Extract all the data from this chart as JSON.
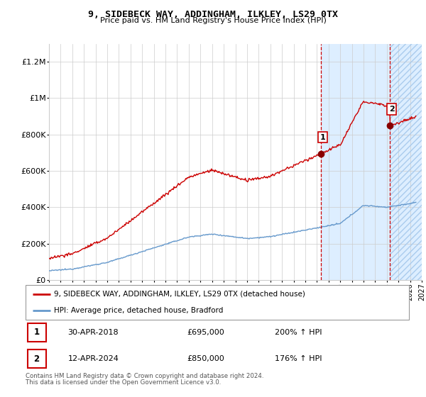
{
  "title": "9, SIDEBECK WAY, ADDINGHAM, ILKLEY, LS29 0TX",
  "subtitle": "Price paid vs. HM Land Registry's House Price Index (HPI)",
  "xlim_start": 1995.0,
  "xlim_end": 2027.0,
  "ylim": [
    0,
    1300000
  ],
  "yticks": [
    0,
    200000,
    400000,
    600000,
    800000,
    1000000,
    1200000
  ],
  "ytick_labels": [
    "£0",
    "£200K",
    "£400K",
    "£600K",
    "£800K",
    "£1M",
    "£1.2M"
  ],
  "sale1_x": 2018.33,
  "sale1_y": 695000,
  "sale2_x": 2024.28,
  "sale2_y": 850000,
  "legend_line1": "9, SIDEBECK WAY, ADDINGHAM, ILKLEY, LS29 0TX (detached house)",
  "legend_line2": "HPI: Average price, detached house, Bradford",
  "table_row1": [
    "1",
    "30-APR-2018",
    "£695,000",
    "200% ↑ HPI"
  ],
  "table_row2": [
    "2",
    "12-APR-2024",
    "£850,000",
    "176% ↑ HPI"
  ],
  "footnote1": "Contains HM Land Registry data © Crown copyright and database right 2024.",
  "footnote2": "This data is licensed under the Open Government Licence v3.0.",
  "line_color_red": "#cc0000",
  "line_color_blue": "#6699cc",
  "vline_color": "#cc0000",
  "hpi_bg_color": "#ddeeff",
  "grid_color": "#cccccc",
  "background_color": "#ffffff"
}
